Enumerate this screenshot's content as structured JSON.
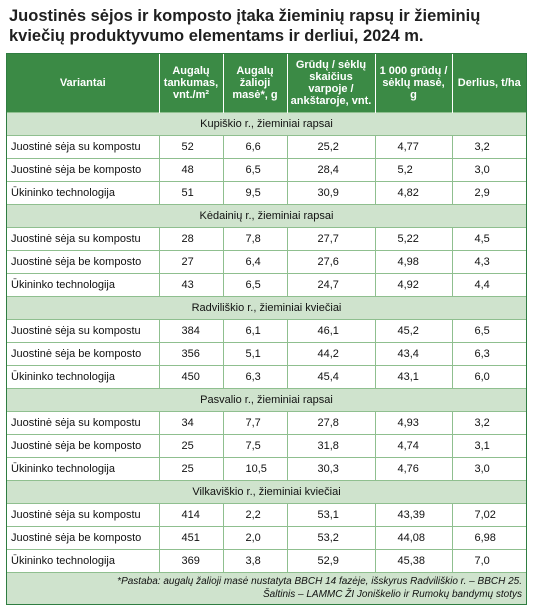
{
  "title": "Juostinės sėjos ir komposto įtaka žieminių rapsų ir žieminių kviečių produktyvumo elementams ir derliui, 2024 m.",
  "headers": [
    "Variantai",
    "Augalų tankumas, vnt./m²",
    "Augalų žalioji masė*, g",
    "Grūdų / sėklų skaičius varpoje / ankštaroje, vnt.",
    "1 000 grūdų / sėklų masė, g",
    "Derlius, t/ha"
  ],
  "sections": [
    {
      "label": "Kupiškio r., žieminiai rapsai",
      "rows": [
        {
          "variant": "Juostinė sėja su kompostu",
          "values": [
            "52",
            "6,6",
            "25,2",
            "4,77",
            "3,2"
          ]
        },
        {
          "variant": "Juostinė sėja be komposto",
          "values": [
            "48",
            "6,5",
            "28,4",
            "5,2",
            "3,0"
          ]
        },
        {
          "variant": "Ūkininko technologija",
          "values": [
            "51",
            "9,5",
            "30,9",
            "4,82",
            "2,9"
          ]
        }
      ]
    },
    {
      "label": "Kėdainių r., žieminiai rapsai",
      "rows": [
        {
          "variant": "Juostinė sėja su kompostu",
          "values": [
            "28",
            "7,8",
            "27,7",
            "5,22",
            "4,5"
          ]
        },
        {
          "variant": "Juostinė sėja be komposto",
          "values": [
            "27",
            "6,4",
            "27,6",
            "4,98",
            "4,3"
          ]
        },
        {
          "variant": "Ūkininko technologija",
          "values": [
            "43",
            "6,5",
            "24,7",
            "4,92",
            "4,4"
          ]
        }
      ]
    },
    {
      "label": "Radviliškio r., žieminiai kviečiai",
      "rows": [
        {
          "variant": "Juostinė sėja su kompostu",
          "values": [
            "384",
            "6,1",
            "46,1",
            "45,2",
            "6,5"
          ]
        },
        {
          "variant": "Juostinė sėja be komposto",
          "values": [
            "356",
            "5,1",
            "44,2",
            "43,4",
            "6,3"
          ]
        },
        {
          "variant": "Ūkininko technologija",
          "values": [
            "450",
            "6,3",
            "45,4",
            "43,1",
            "6,0"
          ]
        }
      ]
    },
    {
      "label": "Pasvalio r., žieminiai rapsai",
      "rows": [
        {
          "variant": "Juostinė sėja su kompostu",
          "values": [
            "34",
            "7,7",
            "27,8",
            "4,93",
            "3,2"
          ]
        },
        {
          "variant": "Juostinė sėja be komposto",
          "values": [
            "25",
            "7,5",
            "31,8",
            "4,74",
            "3,1"
          ]
        },
        {
          "variant": "Ūkininko technologija",
          "values": [
            "25",
            "10,5",
            "30,3",
            "4,76",
            "3,0"
          ]
        }
      ]
    },
    {
      "label": "Vilkaviškio r., žieminiai kviečiai",
      "rows": [
        {
          "variant": "Juostinė sėja su kompostu",
          "values": [
            "414",
            "2,2",
            "53,1",
            "43,39",
            "7,02"
          ]
        },
        {
          "variant": "Juostinė sėja be komposto",
          "values": [
            "451",
            "2,0",
            "53,2",
            "44,08",
            "6,98"
          ]
        },
        {
          "variant": "Ūkininko technologija",
          "values": [
            "369",
            "3,8",
            "52,9",
            "45,38",
            "7,0"
          ]
        }
      ]
    }
  ],
  "note_line1": "*Pastaba: augalų žalioji masė nustatyta BBCH 14 fazėje, išskyrus Radviliškio r. – BBCH 25.",
  "note_line2": "Šaltinis – LAMMC ŽI Joniškelio ir Rumokų bandymų stotys",
  "colors": {
    "header_green": "#3b8a45",
    "section_green": "#cfe3cd",
    "border_green": "#8fbf8f"
  }
}
